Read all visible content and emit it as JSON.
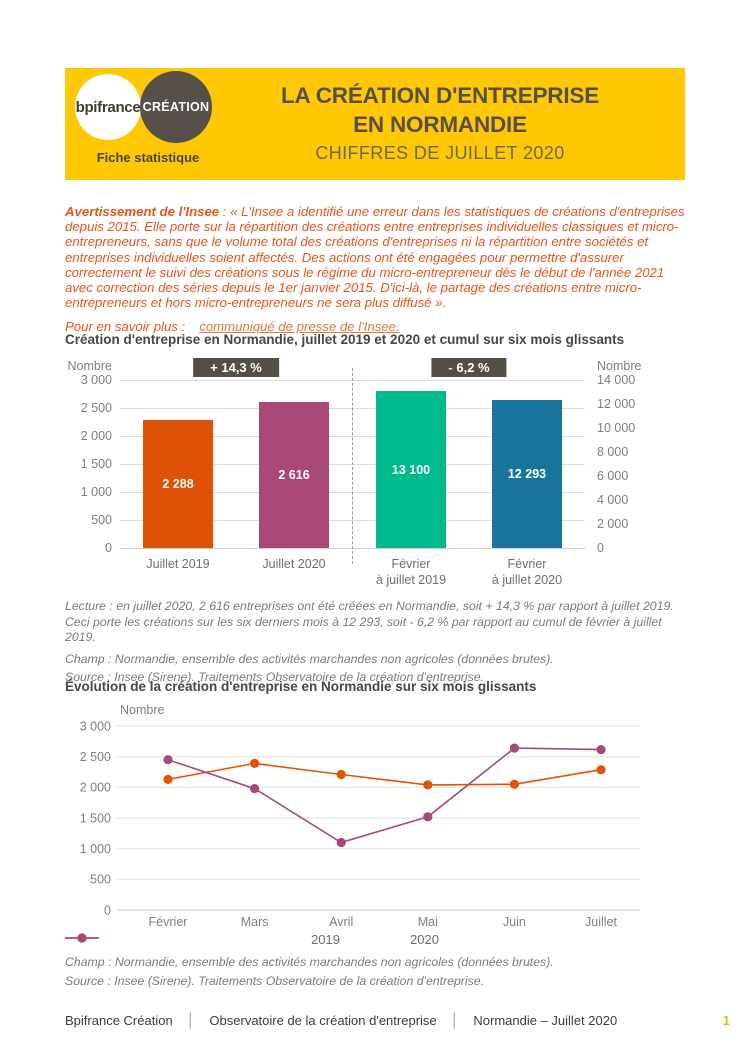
{
  "header": {
    "logo_bpifrance": "bpifrance",
    "logo_creation": "CRÉATION",
    "tagline": "Fiche statistique",
    "title_line1": "LA CRÉATION D'ENTREPRISE",
    "title_line2": "EN NORMANDIE",
    "subtitle": "CHIFFRES DE JUILLET 2020"
  },
  "notice": {
    "lead": "Avertissement de l'Insee",
    "body": " : « L'Insee a identifié une erreur dans les statistiques de créations d'entreprises depuis 2015. Elle porte sur la répartition des créations entre entreprises individuelles classiques et micro-entrepreneurs, sans que le volume total des créations d'entreprises ni la répartition entre sociétés et entreprises individuelles soient affectés. Des actions ont été engagées pour permettre d'assurer correctement le suivi des créations sous le régime du micro-entrepreneur dès le début de l'année 2021 avec correction des séries depuis le 1er janvier 2015. D'ici-là, le partage des créations entre micro-entrepreneurs et hors micro-entrepreneurs ne sera plus diffusé ».",
    "more_label": "Pour en savoir plus :",
    "link_label": "communiqué de presse de l'Insee."
  },
  "notes_bar": {
    "lecture": "Lecture : en juillet 2020, 2 616 entreprises ont été créées en Normandie, soit + 14,3 % par rapport à juillet 2019. Ceci porte les créations sur les six derniers mois à 12 293, soit - 6,2 % par rapport au cumul de février à juillet 2019.",
    "champ": "Champ : Normandie, ensemble des activités marchandes non agricoles (données brutes).",
    "source": "Source : Insee (Sirene). Traitements Observatoire de la création d'entreprise."
  },
  "notes_line": {
    "champ": "Champ : Normandie, ensemble des activités marchandes non agricoles (données brutes).",
    "source": "Source : Insee (Sirene). Traitements Observatoire de la création d'entreprise."
  },
  "footer": {
    "brand": "Bpifrance Création",
    "observatory": "Observatoire de la création d'entreprise",
    "edition": "Normandie – Juillet 2020",
    "separator": "│",
    "page_number": "1"
  },
  "colors": {
    "brand_yellow": "#FFC805",
    "brand_brown": "#57504A",
    "notice_orange": "#E8541D",
    "badge_bg": "#554E46"
  },
  "chart_data": [
    {
      "type": "bar",
      "title": "Création d'entreprise en Normandie, juillet 2019 et 2020 et cumul sur six mois glissants",
      "left_axis": {
        "label": "Nombre",
        "max": 3000,
        "ticks": [
          "3 000",
          "2 500",
          "2 000",
          "1 500",
          "1 000",
          "500",
          "0"
        ]
      },
      "right_axis": {
        "label": "Nombre",
        "max": 14000,
        "ticks": [
          "14 000",
          "12 000",
          "10 000",
          "8 000",
          "6 000",
          "4 000",
          "2 000",
          "0"
        ]
      },
      "badges": [
        {
          "label": "+ 14,3 %",
          "over": "bars 1-2"
        },
        {
          "label": "- 6,2 %",
          "over": "bars 3-4"
        }
      ],
      "bars": [
        {
          "category_lines": [
            "Juillet 2019"
          ],
          "value": 2288,
          "label": "2 288",
          "color": "#DD5207",
          "axis": "left"
        },
        {
          "category_lines": [
            "Juillet 2020"
          ],
          "value": 2616,
          "label": "2 616",
          "color": "#A74877",
          "axis": "left"
        },
        {
          "category_lines": [
            "Février",
            "à juillet 2019"
          ],
          "value": 13100,
          "label": "13 100",
          "color": "#00BA8C",
          "axis": "right"
        },
        {
          "category_lines": [
            "Février",
            "à juillet 2020"
          ],
          "value": 12293,
          "label": "12 293",
          "color": "#19749B",
          "axis": "right"
        }
      ],
      "layout": {
        "grid": true,
        "dashed_separator_between_groups": true
      }
    },
    {
      "type": "line",
      "title": "Évolution de la création d'entreprise en Normandie sur six mois glissants",
      "ylabel": "Nombre",
      "ylim": [
        0,
        3000
      ],
      "yticks": [
        "3 000",
        "2 500",
        "2 000",
        "1 500",
        "1 000",
        "500",
        "0"
      ],
      "categories": [
        "Février",
        "Mars",
        "Avril",
        "Mai",
        "Juin",
        "Juillet"
      ],
      "series": [
        {
          "name": "2019",
          "color": "#E25303",
          "values": [
            2130,
            2390,
            2210,
            2040,
            2050,
            2288
          ]
        },
        {
          "name": "2020",
          "color": "#A8487A",
          "values": [
            2450,
            1980,
            1100,
            1520,
            2640,
            2616
          ]
        }
      ],
      "layout": {
        "grid": true,
        "legend_position": "bottom",
        "markers": "circle"
      }
    }
  ]
}
